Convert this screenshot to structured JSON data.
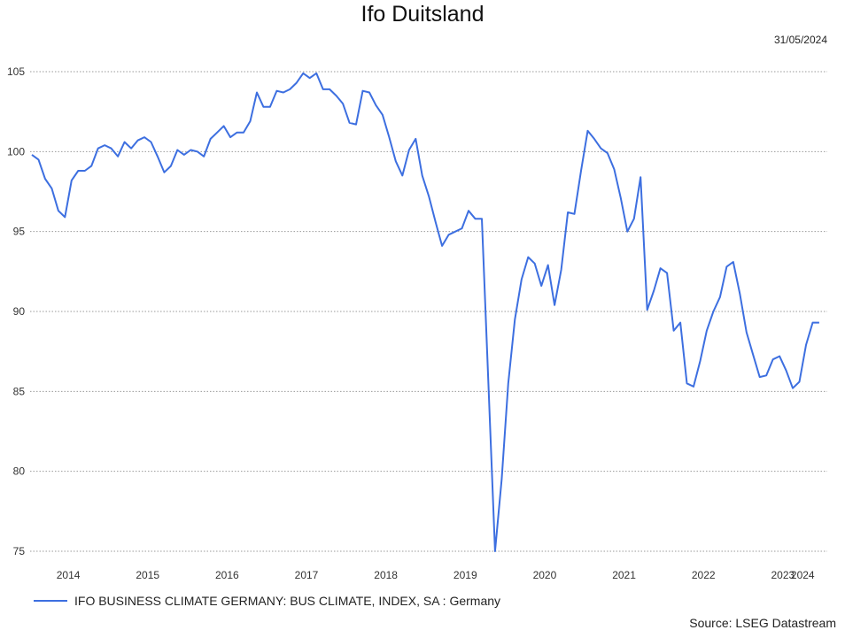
{
  "chart_data": {
    "type": "line",
    "title": "Ifo Duitsland",
    "date_label": "31/05/2024",
    "source": "Source: LSEG Datastream",
    "line_color": "#3d6fe0",
    "ylim": [
      75,
      106
    ],
    "y_ticks": [
      105,
      100,
      95,
      90,
      85,
      80,
      75
    ],
    "x_ticks": [
      "2014",
      "2015",
      "2016",
      "2017",
      "2018",
      "2019",
      "2020",
      "2021",
      "2022",
      "2023",
      "2024"
    ],
    "x_start": "2014-01",
    "grid": true,
    "legend_position": "bottom-left",
    "series": [
      {
        "name": "IFO BUSINESS CLIMATE GERMANY: BUS CLIMATE, INDEX, SA : Germany",
        "values": [
          99.8,
          99.5,
          98.3,
          97.7,
          96.3,
          95.9,
          98.2,
          98.8,
          98.8,
          99.1,
          100.2,
          100.4,
          100.2,
          99.7,
          100.6,
          100.2,
          100.7,
          100.9,
          100.6,
          99.7,
          98.7,
          99.1,
          100.1,
          99.8,
          100.1,
          100.0,
          99.7,
          100.8,
          101.2,
          101.6,
          100.9,
          101.2,
          101.2,
          101.9,
          103.7,
          102.8,
          102.8,
          103.8,
          103.7,
          103.9,
          104.3,
          104.9,
          104.6,
          104.9,
          103.9,
          103.9,
          103.5,
          103.0,
          101.8,
          101.7,
          103.8,
          103.7,
          102.9,
          102.3,
          100.9,
          99.4,
          98.5,
          100.1,
          100.8,
          98.5,
          97.2,
          95.6,
          94.1,
          94.8,
          95.0,
          95.2,
          96.3,
          95.8,
          95.8,
          85.5,
          75.0,
          79.5,
          85.5,
          89.5,
          92.0,
          93.4,
          93.0,
          91.6,
          92.9,
          90.4,
          92.6,
          96.2,
          96.1,
          98.8,
          101.3,
          100.8,
          100.2,
          99.9,
          98.9,
          97.1,
          95.0,
          95.8,
          98.4,
          90.1,
          91.3,
          92.7,
          92.4,
          88.8,
          89.3,
          85.5,
          85.3,
          86.9,
          88.8,
          90.0,
          90.9,
          92.8,
          93.1,
          91.1,
          88.7,
          87.3,
          85.9,
          86.0,
          87.0,
          87.2,
          86.3,
          85.2,
          85.6,
          87.9,
          89.3,
          89.3
        ]
      }
    ]
  }
}
